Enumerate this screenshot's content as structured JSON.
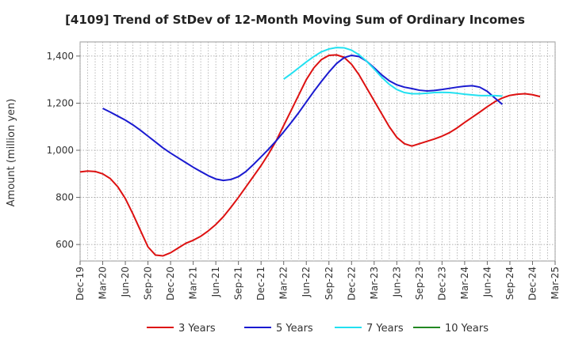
{
  "chart_data": {
    "type": "line",
    "title": "[4109]  Trend of StDev of 12-Month Moving Sum of Ordinary Incomes",
    "xlabel": "",
    "ylabel": "Amount (million yen)",
    "ylim": [
      530,
      1460
    ],
    "y_ticks": [
      600,
      800,
      1000,
      1200,
      1400
    ],
    "y_tick_labels": [
      "600",
      "800",
      "1,000",
      "1,200",
      "1,400"
    ],
    "x_tick_labels": [
      "Dec-19",
      "Mar-20",
      "Jun-20",
      "Sep-20",
      "Dec-20",
      "Mar-21",
      "Jun-21",
      "Sep-21",
      "Dec-21",
      "Mar-22",
      "Jun-22",
      "Sep-22",
      "Dec-22",
      "Mar-23",
      "Jun-23",
      "Sep-23",
      "Dec-23",
      "Mar-24",
      "Jun-24",
      "Sep-24",
      "Dec-24",
      "Mar-25"
    ],
    "x_start": "Dec-19",
    "x_end": "Mar-25",
    "grid": true,
    "legend_position": "bottom",
    "series": [
      {
        "name": "3 Years",
        "color": "#dd1111",
        "start_month_index": 0,
        "values": [
          908,
          912,
          910,
          900,
          880,
          845,
          795,
          730,
          660,
          590,
          555,
          552,
          565,
          585,
          605,
          618,
          635,
          658,
          685,
          718,
          758,
          800,
          845,
          890,
          935,
          985,
          1040,
          1105,
          1170,
          1235,
          1300,
          1350,
          1385,
          1403,
          1405,
          1395,
          1365,
          1320,
          1265,
          1210,
          1155,
          1100,
          1055,
          1028,
          1018,
          1028,
          1038,
          1048,
          1060,
          1075,
          1095,
          1118,
          1140,
          1162,
          1185,
          1206,
          1222,
          1233,
          1238,
          1240,
          1236,
          1228
        ]
      },
      {
        "name": "5 Years",
        "color": "#1a1ad0",
        "start_month_index": 3,
        "values": [
          1178,
          1162,
          1145,
          1128,
          1108,
          1085,
          1060,
          1035,
          1010,
          988,
          968,
          948,
          928,
          910,
          892,
          878,
          872,
          876,
          888,
          910,
          940,
          972,
          1005,
          1040,
          1078,
          1118,
          1160,
          1205,
          1250,
          1292,
          1332,
          1368,
          1393,
          1403,
          1398,
          1378,
          1350,
          1320,
          1295,
          1278,
          1268,
          1262,
          1255,
          1252,
          1254,
          1258,
          1263,
          1268,
          1272,
          1274,
          1268,
          1250,
          1222,
          1195
        ]
      },
      {
        "name": "7 Years",
        "color": "#22e0f0",
        "start_month_index": 27,
        "values": [
          1302,
          1325,
          1350,
          1375,
          1398,
          1418,
          1430,
          1436,
          1435,
          1425,
          1405,
          1378,
          1345,
          1310,
          1280,
          1258,
          1245,
          1240,
          1240,
          1242,
          1245,
          1246,
          1245,
          1242,
          1238,
          1235,
          1232,
          1232,
          1232,
          1230
        ]
      },
      {
        "name": "10 Years",
        "color": "#228822",
        "start_month_index": 0,
        "values": []
      }
    ]
  }
}
